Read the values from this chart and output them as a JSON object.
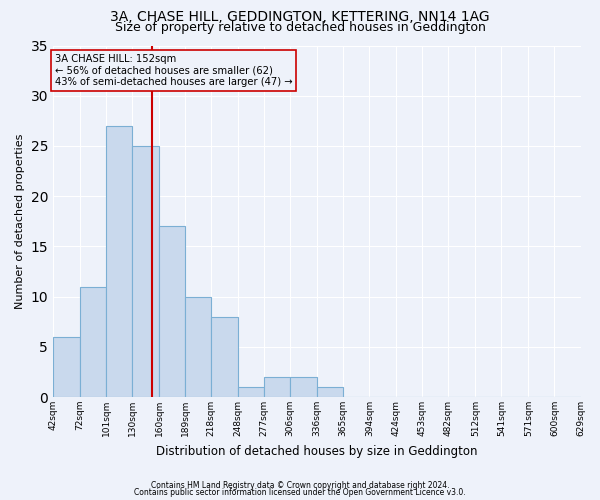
{
  "title1": "3A, CHASE HILL, GEDDINGTON, KETTERING, NN14 1AG",
  "title2": "Size of property relative to detached houses in Geddington",
  "xlabel": "Distribution of detached houses by size in Geddington",
  "ylabel": "Number of detached properties",
  "footnote1": "Contains HM Land Registry data © Crown copyright and database right 2024.",
  "footnote2": "Contains public sector information licensed under the Open Government Licence v3.0.",
  "bin_labels": [
    "42sqm",
    "72sqm",
    "101sqm",
    "130sqm",
    "160sqm",
    "189sqm",
    "218sqm",
    "248sqm",
    "277sqm",
    "306sqm",
    "336sqm",
    "365sqm",
    "394sqm",
    "424sqm",
    "453sqm",
    "482sqm",
    "512sqm",
    "541sqm",
    "571sqm",
    "600sqm",
    "629sqm"
  ],
  "bin_edges": [
    42,
    72,
    101,
    130,
    160,
    189,
    218,
    248,
    277,
    306,
    336,
    365,
    394,
    424,
    453,
    482,
    512,
    541,
    571,
    600,
    629
  ],
  "values": [
    6,
    11,
    27,
    25,
    17,
    10,
    8,
    1,
    2,
    2,
    1,
    0,
    0,
    0,
    0,
    0,
    0,
    0,
    0,
    0
  ],
  "bar_color": "#c9d9ed",
  "bar_edge_color": "#7bafd4",
  "property_size": 152,
  "property_label": "3A CHASE HILL: 152sqm",
  "annotation_line1": "← 56% of detached houses are smaller (62)",
  "annotation_line2": "43% of semi-detached houses are larger (47) →",
  "vline_color": "#cc0000",
  "annotation_box_edge": "#cc0000",
  "ylim": [
    0,
    35
  ],
  "yticks": [
    0,
    5,
    10,
    15,
    20,
    25,
    30,
    35
  ],
  "background_color": "#eef2fa",
  "grid_color": "#ffffff",
  "title_fontsize": 10,
  "subtitle_fontsize": 9
}
